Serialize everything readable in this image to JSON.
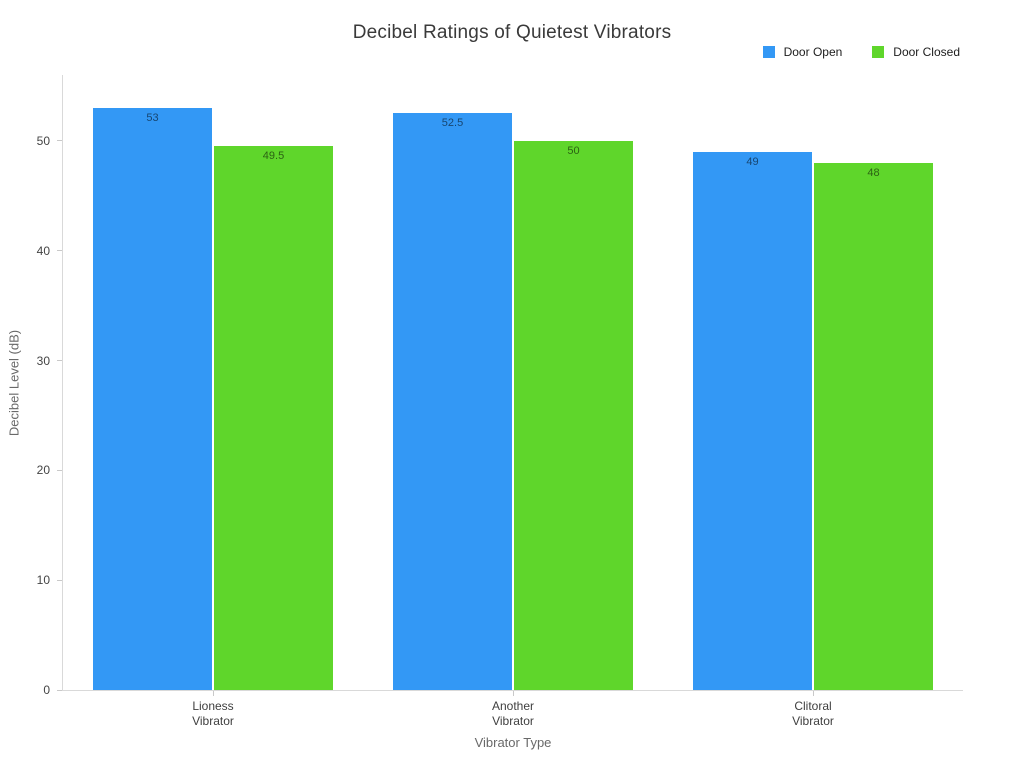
{
  "page": {
    "background": "#ffffff"
  },
  "chart_data": {
    "type": "bar",
    "title": "Decibel Ratings of Quietest Vibrators",
    "xlabel": "Vibrator Type",
    "ylabel": "Decibel Level (dB)",
    "categories": [
      "Lioness\nVibrator",
      "Another\nVibrator",
      "Clitoral\nVibrator"
    ],
    "series": [
      {
        "name": "Door Open",
        "color": "#3398F5",
        "values": [
          53,
          52.5,
          49
        ]
      },
      {
        "name": "Door Closed",
        "color": "#5FD62B",
        "values": [
          49.5,
          50,
          48
        ]
      }
    ],
    "bar_labels": [
      [
        "53",
        "52.5",
        "49"
      ],
      [
        "49.5",
        "50",
        "48"
      ]
    ],
    "yticks": [
      0,
      10,
      20,
      30,
      40,
      50
    ],
    "ylim": [
      0,
      56
    ],
    "grid": false,
    "legend_position": "top-right",
    "colors": {
      "axis_line": "#d9d9d9",
      "title_text": "#3a3a3a",
      "tick_text": "#444444",
      "axis_title_text": "#696969",
      "bar_label_text": "rgba(0,0,0,0.55)"
    }
  }
}
